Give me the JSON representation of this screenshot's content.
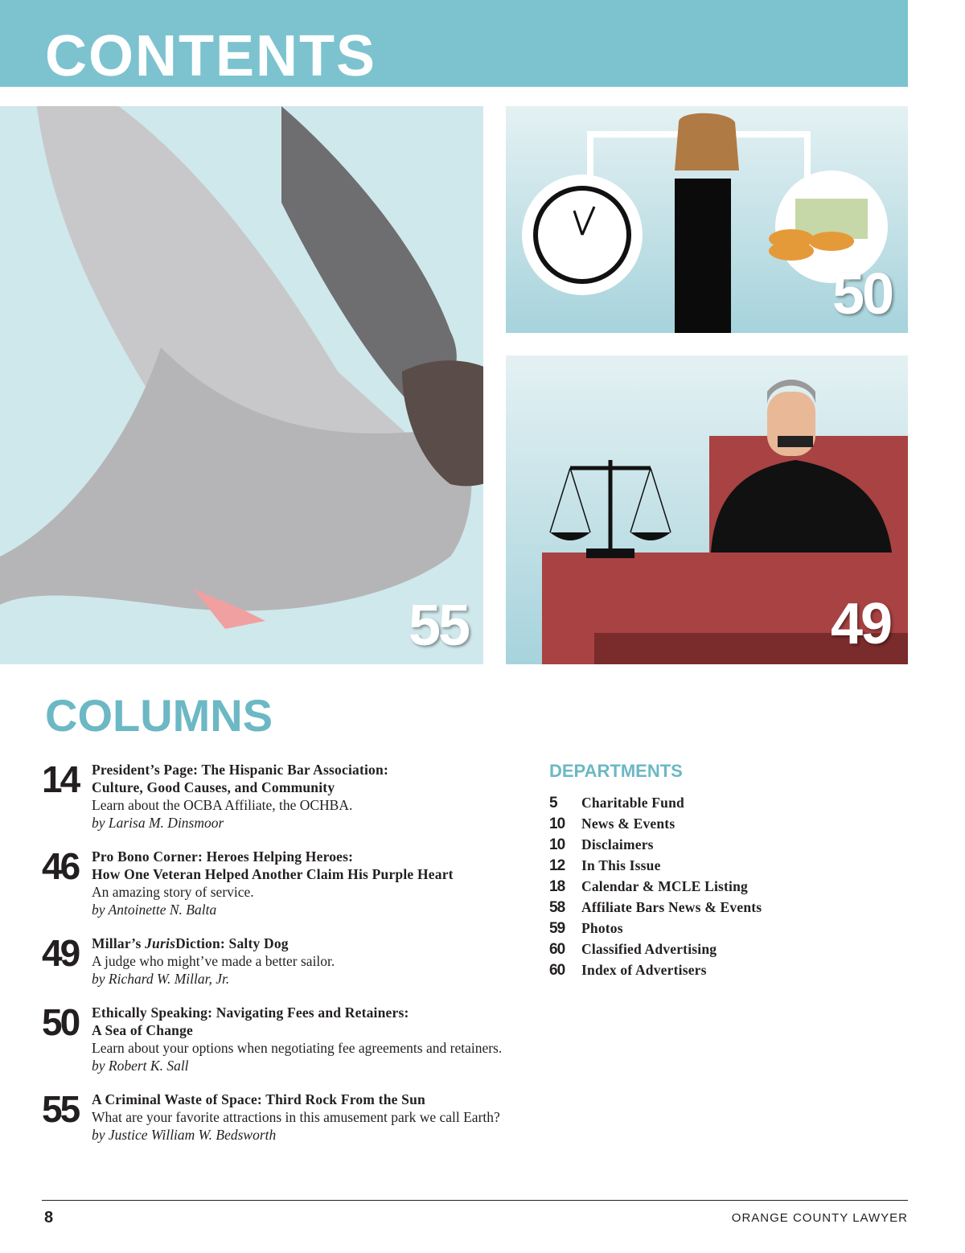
{
  "header": {
    "title": "CONTENTS",
    "color": "#7cc3cf"
  },
  "features": [
    {
      "page": "55",
      "illustration": "pigeon"
    },
    {
      "page": "50",
      "illustration": "fist-clock-money"
    },
    {
      "page": "49",
      "illustration": "judge-gagged-scales"
    }
  ],
  "columns": {
    "heading": "COLUMNS",
    "items": [
      {
        "page": "14",
        "title1": "President’s Page: The Hispanic Bar Association:",
        "title2": "Culture, Good Causes, and Community",
        "desc": "Learn about the OCBA Affiliate, the OCHBA.",
        "author": "by Larisa M. Dinsmoor"
      },
      {
        "page": "46",
        "title1": "Pro Bono Corner: Heroes Helping Heroes:",
        "title2": "How One Veteran Helped Another Claim His Purple Heart",
        "desc": "An amazing story of service.",
        "author": "by Antoinette N. Balta"
      },
      {
        "page": "49",
        "title_a": "Millar’s ",
        "title_b": "Juris",
        "title_c": "Diction: Salty Dog",
        "desc": "A judge who might’ve made a better sailor.",
        "author": "by Richard W. Millar, Jr."
      },
      {
        "page": "50",
        "title1": "Ethically Speaking: Navigating Fees and Retainers:",
        "title2": "A Sea of Change",
        "desc": "Learn about your options when negotiating fee agreements and retainers.",
        "author": "by Robert K. Sall"
      },
      {
        "page": "55",
        "title1": "A Criminal Waste of Space: Third Rock From the Sun",
        "desc": "What are your favorite attractions in this amusement park we call Earth?",
        "author": "by Justice William W. Bedsworth"
      }
    ]
  },
  "departments": {
    "heading": "DEPARTMENTS",
    "items": [
      {
        "page": "5",
        "label": "Charitable Fund"
      },
      {
        "page": "10",
        "label": "News & Events"
      },
      {
        "page": "10",
        "label": "Disclaimers"
      },
      {
        "page": "12",
        "label": "In This Issue"
      },
      {
        "page": "18",
        "label": "Calendar & MCLE Listing"
      },
      {
        "page": "58",
        "label": "Affiliate Bars News & Events"
      },
      {
        "page": "59",
        "label": "Photos"
      },
      {
        "page": "60",
        "label": "Classified Advertising"
      },
      {
        "page": "60",
        "label": "Index of Advertisers"
      }
    ]
  },
  "footer": {
    "folio": "8",
    "magazine": "ORANGE COUNTY LAWYER"
  }
}
